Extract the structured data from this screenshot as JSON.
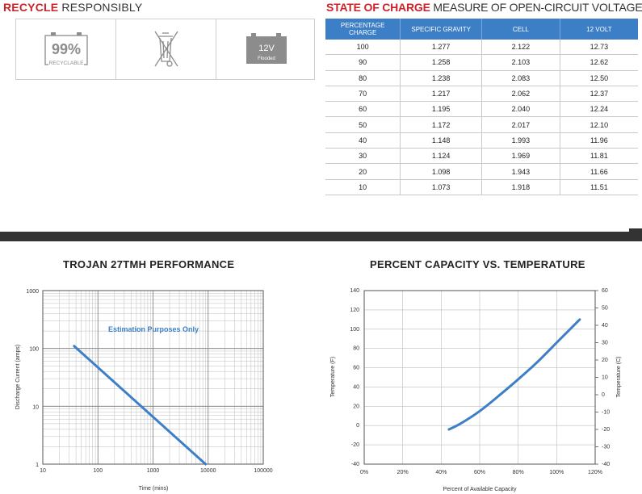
{
  "recycle": {
    "title_red": "RECYCLE",
    "title_dark": "RESPONSIBLY",
    "icons": [
      {
        "name": "recyclable-battery-icon",
        "percent": "99%",
        "label": "RECYCLABLE"
      },
      {
        "name": "crossed-out-bin-icon"
      },
      {
        "name": "flooded-battery-icon",
        "voltage": "12V",
        "type": "Flooded"
      }
    ]
  },
  "soc": {
    "title_red": "STATE OF CHARGE",
    "title_dark": "MEASURE OF OPEN-CIRCUIT VOLTAGE",
    "header_color": "#3d7fc7",
    "columns": [
      "PERCENTAGE CHARGE",
      "SPECIFIC GRAVITY",
      "CELL",
      "12 VOLT"
    ],
    "rows": [
      [
        "100",
        "1.277",
        "2.122",
        "12.73"
      ],
      [
        "90",
        "1.258",
        "2.103",
        "12.62"
      ],
      [
        "80",
        "1.238",
        "2.083",
        "12.50"
      ],
      [
        "70",
        "1.217",
        "2.062",
        "12.37"
      ],
      [
        "60",
        "1.195",
        "2.040",
        "12.24"
      ],
      [
        "50",
        "1.172",
        "2.017",
        "12.10"
      ],
      [
        "40",
        "1.148",
        "1.993",
        "11.96"
      ],
      [
        "30",
        "1.124",
        "1.969",
        "11.81"
      ],
      [
        "20",
        "1.098",
        "1.943",
        "11.66"
      ],
      [
        "10",
        "1.073",
        "1.918",
        "11.51"
      ]
    ]
  },
  "chart_data": [
    {
      "type": "line",
      "title": "TROJAN 27TMH PERFORMANCE",
      "xlabel": "Time (mins)",
      "ylabel": "Discharge Current (amps)",
      "x_scale": "log",
      "y_scale": "log",
      "xlim": [
        10,
        100000
      ],
      "ylim": [
        1,
        1000
      ],
      "x_ticks": [
        "10",
        "100",
        "1000",
        "10000",
        "100000"
      ],
      "y_ticks": [
        "1",
        "10",
        "100",
        "1000"
      ],
      "annotation": "Estimation Purposes Only",
      "line_color": "#3d7fc7",
      "grid": true,
      "series": [
        {
          "x": [
            37,
            9000
          ],
          "y": [
            110,
            1
          ]
        }
      ]
    },
    {
      "type": "line",
      "title": "PERCENT CAPACITY VS. TEMPERATURE",
      "xlabel": "Percent of Available Capacity",
      "ylabel": "Temperature (F)",
      "ylabel_right": "Temperature (C)",
      "xlim": [
        0,
        120
      ],
      "ylim": [
        -40,
        140
      ],
      "ylim_right": [
        -40,
        60
      ],
      "x_ticks": [
        "0%",
        "20%",
        "40%",
        "60%",
        "80%",
        "100%",
        "120%"
      ],
      "y_ticks": [
        "-40",
        "-20",
        "0",
        "20",
        "40",
        "60",
        "80",
        "100",
        "120",
        "140"
      ],
      "y_ticks_right": [
        "-40",
        "-30",
        "-20",
        "-10",
        "0",
        "10",
        "20",
        "30",
        "40",
        "50",
        "60"
      ],
      "line_color": "#3d7fc7",
      "grid": true,
      "series": [
        {
          "x": [
            44,
            50,
            60,
            70,
            80,
            90,
            100,
            112
          ],
          "y": [
            -4,
            2,
            15,
            31,
            48,
            66,
            86,
            110
          ]
        }
      ]
    }
  ]
}
